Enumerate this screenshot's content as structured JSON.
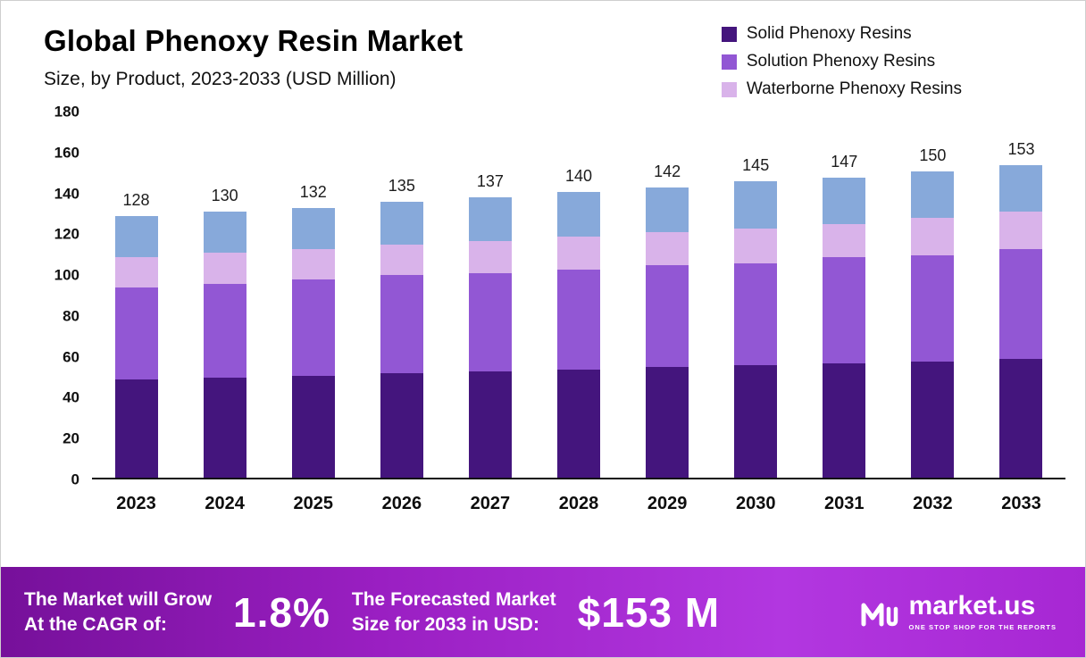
{
  "header": {
    "title": "Global Phenoxy Resin Market",
    "subtitle": "Size, by Product, 2023-2033 (USD Million)"
  },
  "legend": [
    {
      "label": "Solid Phenoxy Resins",
      "color": "#44157d"
    },
    {
      "label": "Solution Phenoxy Resins",
      "color": "#9257d4"
    },
    {
      "label": "Waterborne Phenoxy Resins",
      "color": "#d9b3ea"
    }
  ],
  "chart_data": {
    "type": "bar",
    "stacked": true,
    "title": "Global Phenoxy Resin Market Size, by Product, 2023-2033 (USD Million)",
    "categories": [
      "2023",
      "2024",
      "2025",
      "2026",
      "2027",
      "2028",
      "2029",
      "2030",
      "2031",
      "2032",
      "2033"
    ],
    "series": [
      {
        "name": "Solid Phenoxy Resins",
        "color": "#44157d",
        "values": [
          48,
          49,
          50,
          51,
          52,
          53,
          54,
          55,
          56,
          57,
          58
        ]
      },
      {
        "name": "Solution Phenoxy Resins",
        "color": "#9257d4",
        "values": [
          45,
          46,
          47,
          48,
          48,
          49,
          50,
          50,
          52,
          52,
          54
        ]
      },
      {
        "name": "Waterborne Phenoxy Resins",
        "color": "#d9b3ea",
        "values": [
          15,
          15,
          15,
          15,
          16,
          16,
          16,
          17,
          16,
          18,
          18
        ]
      },
      {
        "name": "",
        "color": "#87a9da",
        "values": [
          20,
          20,
          20,
          21,
          21,
          22,
          22,
          23,
          23,
          23,
          23
        ]
      }
    ],
    "totals": [
      128,
      130,
      132,
      135,
      137,
      140,
      142,
      145,
      147,
      150,
      153
    ],
    "ylim": [
      0,
      180
    ],
    "yticks": [
      0,
      20,
      40,
      60,
      80,
      100,
      120,
      140,
      160,
      180
    ],
    "grid": false,
    "legend_position": "top-right"
  },
  "banner": {
    "cagr_line1": "The Market will Grow",
    "cagr_line2": "At the CAGR of:",
    "cagr_value": "1.8%",
    "forecast_line1": "The Forecasted Market",
    "forecast_line2": "Size for 2033 in USD:",
    "forecast_value": "$153 M",
    "logo_text": "market.us",
    "logo_tagline": "ONE STOP SHOP FOR THE REPORTS"
  }
}
